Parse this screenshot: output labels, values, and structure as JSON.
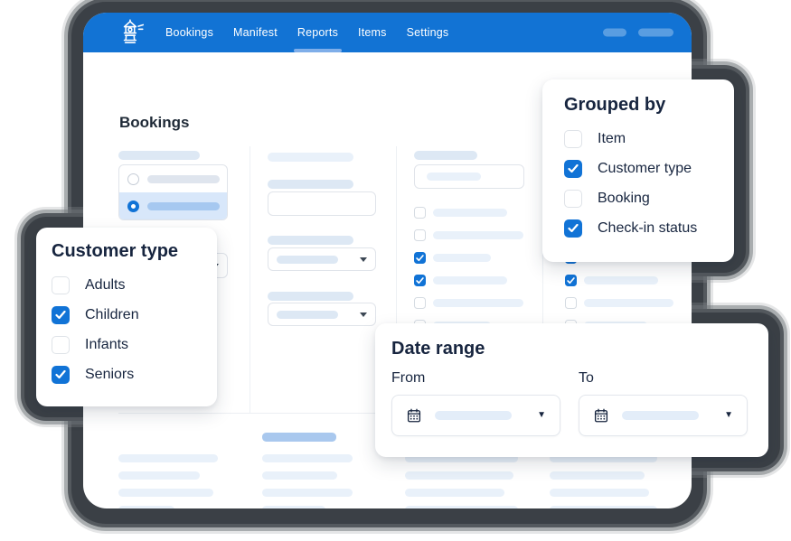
{
  "app": {
    "logo_icon": "lighthouse-icon"
  },
  "nav": {
    "items": [
      {
        "label": "Bookings",
        "active": false
      },
      {
        "label": "Manifest",
        "active": false
      },
      {
        "label": "Reports",
        "active": true
      },
      {
        "label": "Items",
        "active": false
      },
      {
        "label": "Settings",
        "active": false
      }
    ]
  },
  "page": {
    "title": "Bookings"
  },
  "popovers": {
    "grouped_by": {
      "title": "Grouped by",
      "options": [
        {
          "label": "Item",
          "checked": false
        },
        {
          "label": "Customer type",
          "checked": true
        },
        {
          "label": "Booking",
          "checked": false
        },
        {
          "label": "Check-in status",
          "checked": true
        }
      ]
    },
    "customer_type": {
      "title": "Customer type",
      "options": [
        {
          "label": "Adults",
          "checked": false
        },
        {
          "label": "Children",
          "checked": true
        },
        {
          "label": "Infants",
          "checked": false
        },
        {
          "label": "Seniors",
          "checked": true
        }
      ]
    },
    "date_range": {
      "title": "Date range",
      "from_label": "From",
      "to_label": "To"
    }
  },
  "skeleton": {
    "filter_col3_checks": [
      false,
      false,
      true,
      true,
      false,
      false,
      true,
      true
    ],
    "filter_col4_checks": [
      false,
      false,
      true,
      true,
      false,
      false,
      true,
      true
    ]
  },
  "colors": {
    "navbar": "#1273d4",
    "accent": "#1173d6",
    "navy": "#17253f"
  }
}
